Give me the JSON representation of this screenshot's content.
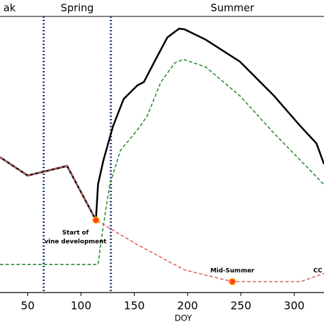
{
  "chart_data": {
    "type": "line",
    "xlabel": "DOY",
    "xlim": [
      24,
      328
    ],
    "xticks": [
      50,
      100,
      150,
      200,
      250,
      300
    ],
    "ylim": [
      0,
      100
    ],
    "seasons": [
      "ak",
      "Spring",
      "Summer"
    ],
    "vlines": [
      65,
      128
    ],
    "vline_color": "#1f3a6e",
    "series": [
      {
        "color": "#000000",
        "style": "solid",
        "x": [
          24,
          50,
          87,
          114,
          116,
          121,
          130,
          140,
          153,
          159,
          169,
          181,
          192,
          197,
          217,
          249,
          281,
          306,
          321,
          328
        ],
        "values": [
          49.5,
          42.8,
          46.3,
          26.5,
          39.5,
          48.3,
          60.8,
          70.8,
          75.8,
          77,
          84.5,
          93.3,
          96.5,
          96.3,
          92.5,
          84.5,
          72,
          60.8,
          54.5,
          47
        ]
      },
      {
        "color": "#2e8b2e",
        "style": "dashed",
        "x": [
          24,
          116,
          121,
          127,
          137,
          153,
          162,
          175,
          188,
          196,
          217,
          249,
          281,
          306,
          328
        ],
        "values": [
          10.3,
          10.3,
          24.5,
          39.5,
          52,
          59.5,
          64.5,
          77,
          84,
          85.3,
          82.5,
          72,
          58.3,
          48.3,
          39.5
        ]
      },
      {
        "color": "#e06060",
        "style": "dashed",
        "x": [
          24,
          50,
          87,
          114,
          153,
          197,
          242,
          306,
          328
        ],
        "values": [
          49.5,
          42.8,
          46.3,
          26.5,
          17.5,
          8.3,
          4,
          4,
          7
        ]
      }
    ],
    "annotations": [
      {
        "text": "Start of vine development",
        "x": 114,
        "y": 26.5
      },
      {
        "text": "Mid-Summer",
        "x": 242,
        "y": 4
      },
      {
        "text": "CC regro",
        "x": 318,
        "y": 10
      }
    ]
  }
}
